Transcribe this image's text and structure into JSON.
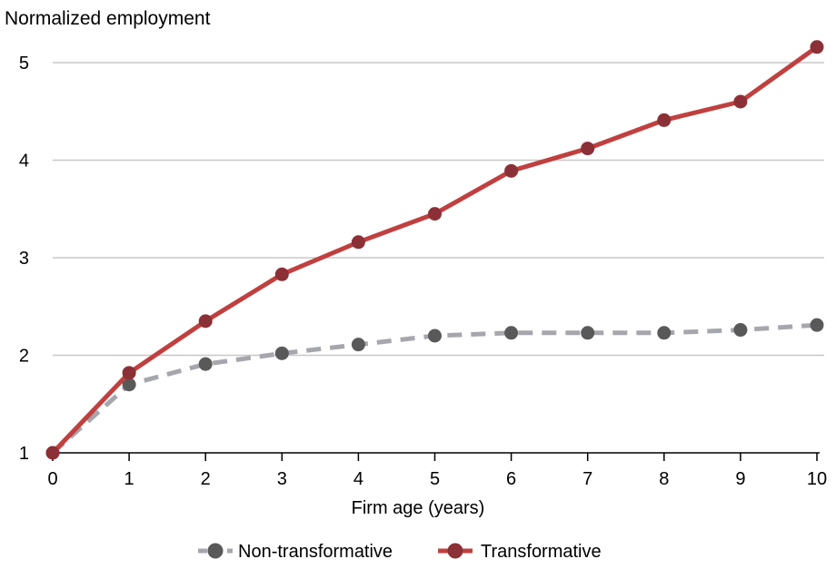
{
  "chart_data": {
    "type": "line",
    "title": "",
    "ylabel": "Normalized employment",
    "xlabel": "Firm age (years)",
    "x": [
      0,
      1,
      2,
      3,
      4,
      5,
      6,
      7,
      8,
      9,
      10
    ],
    "xlim": [
      0,
      10
    ],
    "ylim": [
      1,
      5
    ],
    "yticks": [
      1,
      2,
      3,
      4,
      5
    ],
    "grid": "horizontal",
    "legend_position": "bottom",
    "series": [
      {
        "name": "Non-transformative",
        "values": [
          1.0,
          1.7,
          1.91,
          2.02,
          2.11,
          2.2,
          2.23,
          2.23,
          2.23,
          2.26,
          2.31
        ],
        "color": "#a6a6ad",
        "marker_color": "#595959",
        "line_style": "dashed"
      },
      {
        "name": "Transformative",
        "values": [
          1.0,
          1.82,
          2.35,
          2.83,
          3.16,
          3.45,
          3.89,
          4.12,
          4.41,
          4.6,
          5.16
        ],
        "color": "#c0403f",
        "marker_color": "#8b3036",
        "line_style": "solid"
      }
    ]
  }
}
